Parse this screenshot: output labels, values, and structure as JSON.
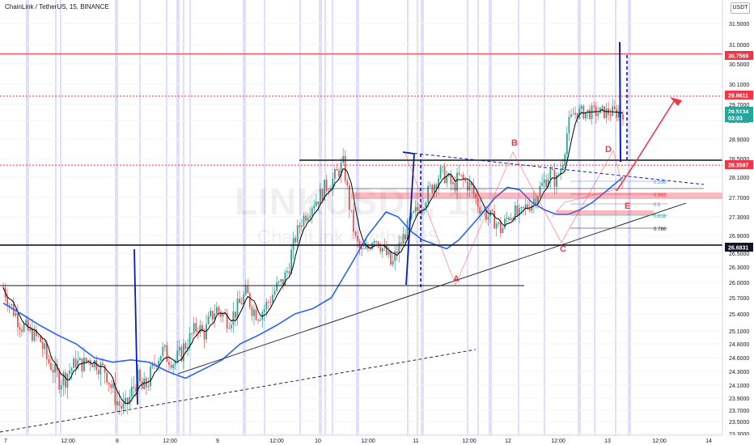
{
  "header": {
    "title": "ChainLink / TetherUS, 15, BINANCE",
    "currency_badge": "USDT",
    "watermark_symbol": "LINKUSDT, 15",
    "watermark_name": "ChainLink / TetherUS"
  },
  "chart_data": {
    "type": "candlestick",
    "symbol": "LINKUSDT",
    "interval": "15",
    "exchange": "BINANCE",
    "ylim": [
      23.4,
      31.8
    ],
    "y_ticks": [
      "31.5000",
      "31.0000",
      "30.5000",
      "30.1000",
      "29.7000",
      "29.3000",
      "28.9000",
      "28.5000",
      "28.1000",
      "27.7000",
      "27.3000",
      "26.9000",
      "26.5000",
      "26.3000",
      "26.0000",
      "25.7000",
      "25.4000",
      "25.1000",
      "24.8000",
      "24.6000",
      "24.3000",
      "24.1000",
      "23.9000",
      "23.7000",
      "23.5000",
      "23.3000"
    ],
    "x_ticks": [
      "7",
      "12:00",
      "8",
      "12:00",
      "9",
      "12:00",
      "10",
      "12:00",
      "11",
      "12:00",
      "12",
      "12:00",
      "13",
      "12:00",
      "14"
    ],
    "price_tags": [
      {
        "label": "30.7569",
        "value": 30.7569,
        "color": "#f23645"
      },
      {
        "label": "29.8611",
        "value": 29.8611,
        "color": "#f23645"
      },
      {
        "label": "29.5134",
        "value": 29.5134,
        "color": "#26a69a"
      },
      {
        "label": "03:03",
        "value": 29.27,
        "color": "#26a69a"
      },
      {
        "label": "28.3597",
        "value": 28.3597,
        "color": "#f23645"
      },
      {
        "label": "26.6831",
        "value": 26.6831,
        "color": "#131722"
      }
    ],
    "pattern_labels": [
      "A",
      "B",
      "C",
      "D",
      "E"
    ],
    "fib_labels": [
      "0.236",
      "0.382",
      "0.5",
      "0.618",
      "0.786"
    ],
    "price_series": [
      [
        0,
        25.9
      ],
      [
        2,
        25.6
      ],
      [
        4,
        25.4
      ],
      [
        6,
        25.2
      ],
      [
        8,
        25.1
      ],
      [
        10,
        25.0
      ],
      [
        12,
        24.9
      ],
      [
        14,
        24.6
      ],
      [
        16,
        24.4
      ],
      [
        17,
        24.2
      ],
      [
        18,
        24.2
      ],
      [
        19,
        24.35
      ],
      [
        20,
        24.5
      ],
      [
        21,
        24.45
      ],
      [
        22,
        24.55
      ],
      [
        23,
        24.5
      ],
      [
        24,
        24.4
      ],
      [
        25,
        24.3
      ],
      [
        26,
        24.0
      ],
      [
        27,
        23.8
      ],
      [
        28,
        23.7
      ],
      [
        29,
        23.95
      ],
      [
        30,
        24.2
      ],
      [
        31,
        24.0
      ],
      [
        32,
        24.2
      ],
      [
        33,
        24.5
      ],
      [
        34,
        24.7
      ],
      [
        35,
        24.6
      ],
      [
        36,
        24.5
      ],
      [
        37,
        24.6
      ],
      [
        38,
        24.8
      ],
      [
        39,
        25.0
      ],
      [
        40,
        25.2
      ],
      [
        41,
        25.0
      ],
      [
        42,
        25.3
      ],
      [
        43,
        25.5
      ],
      [
        44,
        25.4
      ],
      [
        45,
        25.3
      ],
      [
        46,
        25.4
      ],
      [
        47,
        25.6
      ],
      [
        48,
        25.8
      ],
      [
        49,
        25.5
      ],
      [
        50,
        25.4
      ],
      [
        51,
        25.5
      ],
      [
        52,
        25.7
      ],
      [
        53,
        25.9
      ],
      [
        54,
        26.0
      ],
      [
        55,
        26.3
      ],
      [
        56,
        26.8
      ],
      [
        57,
        27.2
      ],
      [
        58,
        27.4
      ],
      [
        59,
        27.6
      ],
      [
        60,
        27.7
      ],
      [
        61,
        27.9
      ],
      [
        62,
        28.0
      ],
      [
        63,
        28.2
      ],
      [
        64,
        28.4
      ],
      [
        65,
        27.5
      ],
      [
        66,
        26.8
      ],
      [
        67,
        26.5
      ],
      [
        68,
        26.6
      ],
      [
        69,
        26.9
      ],
      [
        70,
        26.7
      ],
      [
        71,
        26.5
      ],
      [
        72,
        26.3
      ],
      [
        73,
        26.6
      ],
      [
        74,
        26.9
      ],
      [
        75,
        27.2
      ],
      [
        76,
        27.4
      ],
      [
        77,
        27.6
      ],
      [
        78,
        27.8
      ],
      [
        79,
        28.0
      ],
      [
        80,
        28.2
      ],
      [
        81,
        28.1
      ],
      [
        82,
        27.9
      ],
      [
        83,
        28.1
      ],
      [
        84,
        28.0
      ],
      [
        85,
        27.9
      ],
      [
        86,
        27.6
      ],
      [
        87,
        27.4
      ],
      [
        88,
        27.3
      ],
      [
        89,
        27.2
      ],
      [
        90,
        27.0
      ],
      [
        91,
        27.3
      ],
      [
        92,
        27.4
      ],
      [
        93,
        27.3
      ],
      [
        94,
        27.5
      ],
      [
        95,
        27.6
      ],
      [
        96,
        27.8
      ],
      [
        97,
        28.0
      ],
      [
        98,
        28.2
      ],
      [
        99,
        28.0
      ],
      [
        100,
        28.4
      ],
      [
        101,
        29.2
      ],
      [
        102,
        29.5
      ]
    ],
    "ma_slow": [
      [
        0,
        25.6
      ],
      [
        3,
        25.4
      ],
      [
        6,
        25.2
      ],
      [
        9,
        25.0
      ],
      [
        12,
        24.8
      ],
      [
        15,
        24.6
      ],
      [
        18,
        24.5
      ],
      [
        21,
        24.55
      ],
      [
        24,
        24.5
      ],
      [
        27,
        24.3
      ],
      [
        30,
        24.2
      ],
      [
        33,
        24.35
      ],
      [
        36,
        24.55
      ],
      [
        39,
        24.8
      ],
      [
        42,
        25.0
      ],
      [
        45,
        25.2
      ],
      [
        48,
        25.4
      ],
      [
        51,
        25.5
      ],
      [
        54,
        25.7
      ],
      [
        57,
        26.3
      ],
      [
        60,
        26.9
      ],
      [
        63,
        27.4
      ],
      [
        65,
        27.3
      ],
      [
        67,
        27.0
      ],
      [
        69,
        26.8
      ],
      [
        71,
        26.7
      ],
      [
        73,
        26.6
      ],
      [
        75,
        26.8
      ],
      [
        77,
        27.1
      ],
      [
        79,
        27.4
      ],
      [
        81,
        27.7
      ],
      [
        83,
        27.9
      ],
      [
        85,
        27.85
      ],
      [
        87,
        27.6
      ],
      [
        89,
        27.45
      ],
      [
        91,
        27.35
      ],
      [
        93,
        27.35
      ],
      [
        95,
        27.45
      ],
      [
        97,
        27.6
      ],
      [
        99,
        27.8
      ],
      [
        102,
        28.1
      ]
    ]
  },
  "theme": {
    "up": "#26a69a",
    "down": "#ef5350",
    "ma_fast": "#000000",
    "ma_slow": "#2962ff",
    "session": "#b8b9f5",
    "resistance": "#f23645",
    "drawing": "#0d1bb5"
  }
}
